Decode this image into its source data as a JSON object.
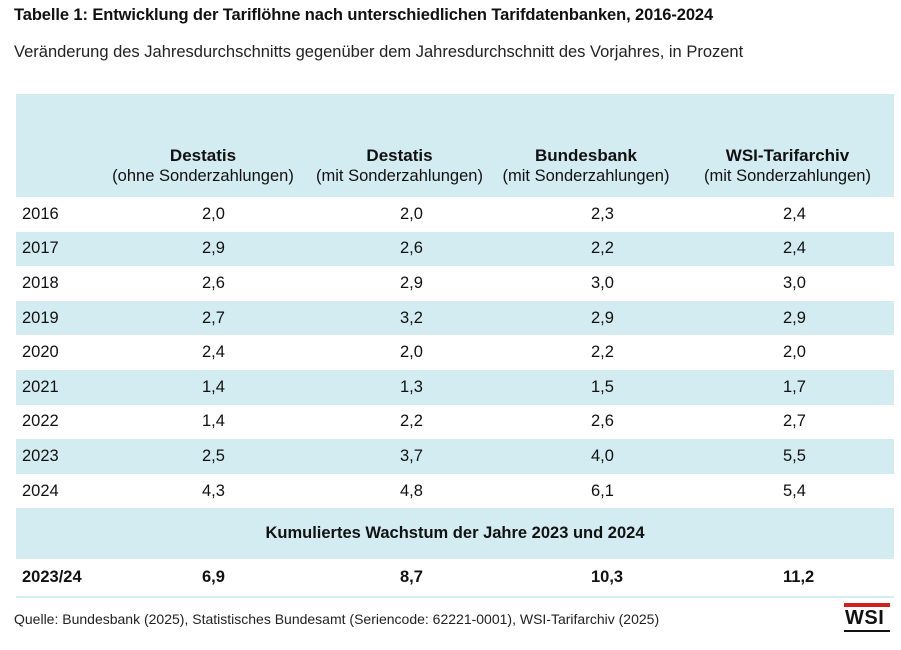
{
  "title": "Tabelle 1: Entwicklung der Tariflöhne nach unterschiedlichen Tarifdatenbanken, 2016-2024",
  "subtitle": "Veränderung des Jahresdurchschnitts gegenüber dem Jahresdurchschnitt des Vorjahres, in Prozent",
  "table": {
    "columns": [
      {
        "name": "Destatis",
        "note": "(ohne Sonderzahlungen)"
      },
      {
        "name": "Destatis",
        "note": "(mit Sonderzahlungen)"
      },
      {
        "name": "Bundesbank",
        "note": "(mit Sonderzahlungen)"
      },
      {
        "name": "WSI-Tarifarchiv",
        "note": "(mit Sonderzahlungen)"
      }
    ],
    "rows": [
      {
        "year": "2016",
        "values": [
          "2,0",
          "2,0",
          "2,3",
          "2,4"
        ]
      },
      {
        "year": "2017",
        "values": [
          "2,9",
          "2,6",
          "2,2",
          "2,4"
        ]
      },
      {
        "year": "2018",
        "values": [
          "2,6",
          "2,9",
          "3,0",
          "3,0"
        ]
      },
      {
        "year": "2019",
        "values": [
          "2,7",
          "3,2",
          "2,9",
          "2,9"
        ]
      },
      {
        "year": "2020",
        "values": [
          "2,4",
          "2,0",
          "2,2",
          "2,0"
        ]
      },
      {
        "year": "2021",
        "values": [
          "1,4",
          "1,3",
          "1,5",
          "1,7"
        ]
      },
      {
        "year": "2022",
        "values": [
          "1,4",
          "2,2",
          "2,6",
          "2,7"
        ]
      },
      {
        "year": "2023",
        "values": [
          "2,5",
          "3,7",
          "4,0",
          "5,5"
        ]
      },
      {
        "year": "2024",
        "values": [
          "4,3",
          "4,8",
          "6,1",
          "5,4"
        ]
      }
    ],
    "cumulative_title": "Kumuliertes Wachstum der Jahre 2023 und 2024",
    "cumulative_row": {
      "year": "2023/24",
      "values": [
        "6,9",
        "8,7",
        "10,3",
        "11,2"
      ]
    }
  },
  "source": "Quelle: Bundesbank (2025), Statistisches Bundesamt (Seriencode: 62221-0001), WSI-Tarifarchiv (2025)",
  "logo": "WSI",
  "colors": {
    "band": "#d3ecf1",
    "logo_accent": "#d0211d"
  }
}
